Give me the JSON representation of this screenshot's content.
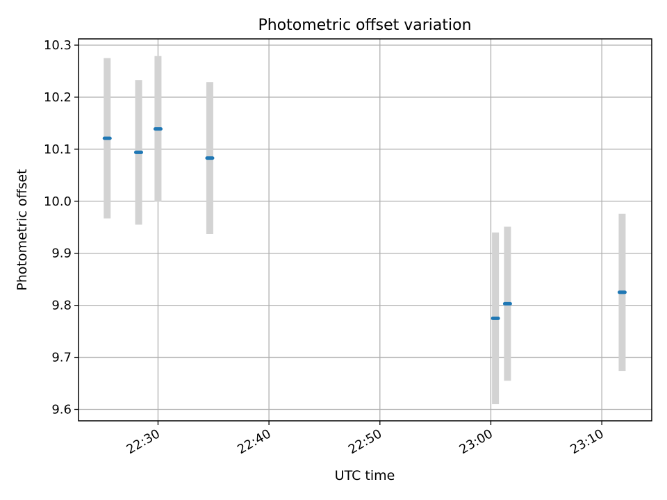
{
  "chart_data": {
    "type": "scatter",
    "title": "Photometric offset variation",
    "xlabel": "UTC time",
    "ylabel": "Photometric offset",
    "xlim": [
      "22:22:50",
      "23:14:30"
    ],
    "ylim": [
      9.578,
      10.312
    ],
    "x_ticks": [
      "22:30",
      "22:40",
      "22:50",
      "23:00",
      "23:10"
    ],
    "y_ticks": [
      9.6,
      9.7,
      9.8,
      9.9,
      10.0,
      10.1,
      10.2,
      10.3
    ],
    "grid": true,
    "legend": "none",
    "colors": {
      "point": "#1f77b4",
      "error_bar": "#d3d3d3"
    },
    "points": [
      {
        "x": "22:25:25",
        "y": 10.121,
        "yerr": 0.154
      },
      {
        "x": "22:28:15",
        "y": 10.094,
        "yerr": 0.139
      },
      {
        "x": "22:30:00",
        "y": 10.139,
        "yerr": 0.14
      },
      {
        "x": "22:34:40",
        "y": 10.083,
        "yerr": 0.146
      },
      {
        "x": "23:00:25",
        "y": 9.775,
        "yerr": 0.165
      },
      {
        "x": "23:01:30",
        "y": 9.803,
        "yerr": 0.148
      },
      {
        "x": "23:11:50",
        "y": 9.825,
        "yerr": 0.151
      }
    ]
  }
}
